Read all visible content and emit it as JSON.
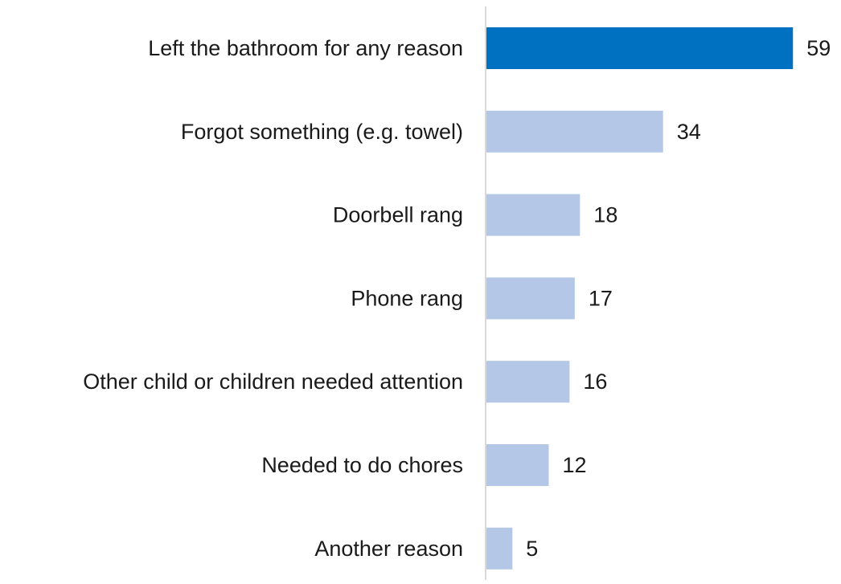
{
  "chart_data": {
    "type": "bar",
    "orientation": "horizontal",
    "title": "",
    "xlabel": "",
    "ylabel": "",
    "categories": [
      "Left the bathroom for any reason",
      "Forgot something (e.g. towel)",
      "Doorbell rang",
      "Phone rang",
      "Other child or children needed attention",
      "Needed to do chores",
      "Another reason"
    ],
    "values": [
      59,
      34,
      18,
      17,
      16,
      12,
      5
    ],
    "value_labels": [
      "59",
      "34",
      "18",
      "17",
      "16",
      "12",
      "5"
    ],
    "xlim": [
      0,
      65
    ],
    "grid": false,
    "legend": "none",
    "colors": {
      "highlight": "#0070C0",
      "default": "#B4C7E7",
      "axis": "#D9D9D9",
      "text": "#1a1a1a"
    },
    "highlight_index": 0
  }
}
